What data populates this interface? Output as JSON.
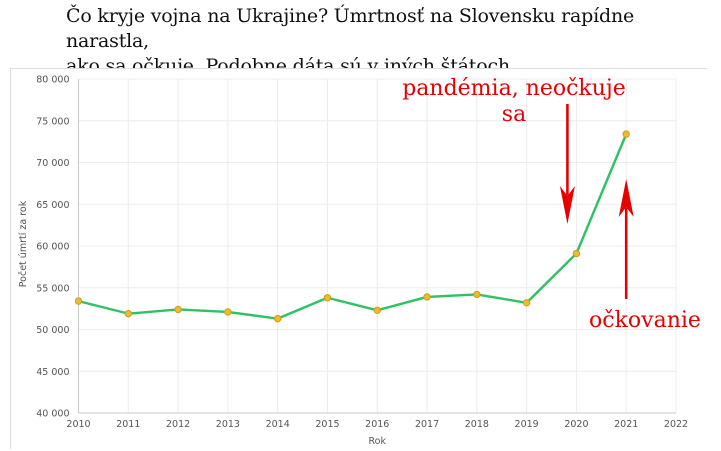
{
  "header": {
    "line1": "Čo kryje vojna na Ukrajine? Úmrtnosť na Slovensku rapídne narastla,",
    "line2": "ako sa očkuje. Podobne dáta sú v iných štátoch."
  },
  "chart_data": {
    "type": "line",
    "title": "",
    "xlabel": "Rok",
    "ylabel": "Počet úmrtí za rok",
    "xlim": [
      2010,
      2022
    ],
    "ylim": [
      40000,
      80000
    ],
    "grid": true,
    "legend": "none",
    "x": [
      2010,
      2011,
      2012,
      2013,
      2014,
      2015,
      2016,
      2017,
      2018,
      2019,
      2020,
      2021
    ],
    "values": [
      53400,
      51900,
      52400,
      52100,
      51300,
      53800,
      52300,
      53900,
      54200,
      53200,
      59100,
      73400
    ],
    "xticks": [
      {
        "value": 2010,
        "label": "2010"
      },
      {
        "value": 2011,
        "label": "2011"
      },
      {
        "value": 2012,
        "label": "2012"
      },
      {
        "value": 2013,
        "label": "2013"
      },
      {
        "value": 2014,
        "label": "2014"
      },
      {
        "value": 2015,
        "label": "2015"
      },
      {
        "value": 2016,
        "label": "2016"
      },
      {
        "value": 2017,
        "label": "2017"
      },
      {
        "value": 2018,
        "label": "2018"
      },
      {
        "value": 2019,
        "label": "2019"
      },
      {
        "value": 2020,
        "label": "2020"
      },
      {
        "value": 2021,
        "label": "2021"
      },
      {
        "value": 2022,
        "label": "2022"
      }
    ],
    "yticks": [
      {
        "value": 40000,
        "label": "40 000"
      },
      {
        "value": 45000,
        "label": "45 000"
      },
      {
        "value": 50000,
        "label": "50 000"
      },
      {
        "value": 55000,
        "label": "55 000"
      },
      {
        "value": 60000,
        "label": "60 000"
      },
      {
        "value": 65000,
        "label": "65 000"
      },
      {
        "value": 70000,
        "label": "70 000"
      },
      {
        "value": 75000,
        "label": "75 000"
      },
      {
        "value": 80000,
        "label": "80 000"
      }
    ]
  },
  "annotations": {
    "pandemic": {
      "text": "pandémia, neočkuje sa",
      "arrow": "down",
      "target_year": 2020
    },
    "vaccination": {
      "text": "očkovanie",
      "arrow": "up",
      "target_year": 2021
    }
  },
  "colors": {
    "line": "#2dc262",
    "marker_fill": "#ecba33",
    "marker_stroke": "#d29d13",
    "annotation_red": "#e60000",
    "grid": "#ececec",
    "axis": "#c9c9c9",
    "tick_text": "#555555",
    "title_text": "#111111"
  }
}
